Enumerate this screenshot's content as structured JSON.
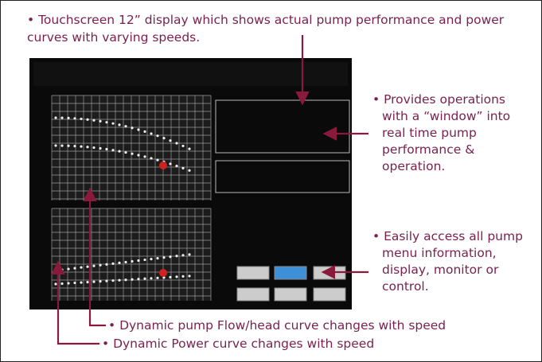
{
  "callouts": {
    "top": {
      "lines": [
        "• Touchscreen 12” display which shows actual pump performance and power",
        "curves with varying speeds."
      ]
    },
    "right_upper": {
      "lines": [
        "• Provides operations",
        "with a “window” into",
        "real time pump",
        "performance &",
        "operation."
      ]
    },
    "right_lower": {
      "lines": [
        "• Easily access all pump",
        "menu information,",
        "display, monitor or",
        "control."
      ]
    },
    "bottom_flow": {
      "lines": [
        "• Dynamic pump Flow/head curve changes with speed"
      ]
    },
    "bottom_power": {
      "lines": [
        "• Dynamic Power curve changes with speed"
      ]
    }
  }
}
